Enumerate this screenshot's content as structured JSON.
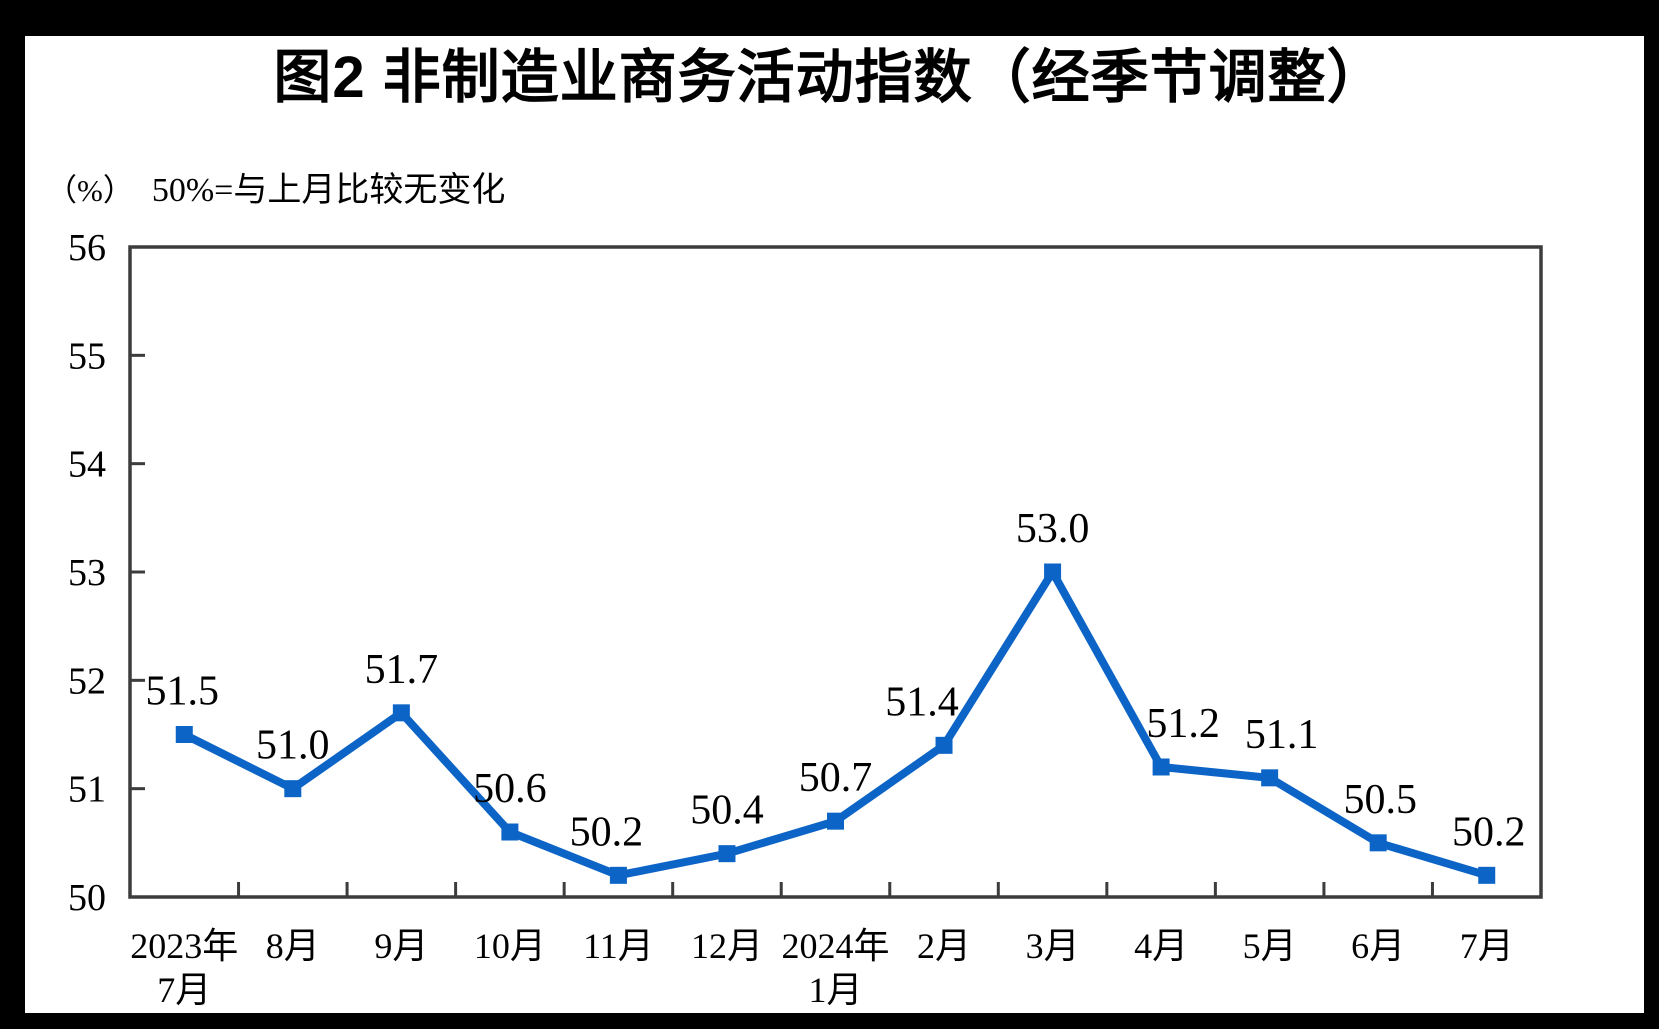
{
  "title": "图2 非制造业商务活动指数（经季节调整）",
  "subtitle": {
    "unit": "（%）",
    "note": "50%=与上月比较无变化"
  },
  "chart_data": {
    "type": "line",
    "title": "图2 非制造业商务活动指数（经季节调整）",
    "categories": [
      "2023年\n7月",
      "8月",
      "9月",
      "10月",
      "11月",
      "12月",
      "2024年\n1月",
      "2月",
      "3月",
      "4月",
      "5月",
      "6月",
      "7月"
    ],
    "values": [
      51.5,
      51.0,
      51.7,
      50.6,
      50.2,
      50.4,
      50.7,
      51.4,
      53.0,
      51.2,
      51.1,
      50.5,
      50.2
    ],
    "data_labels": [
      "51.5",
      "51.0",
      "51.7",
      "50.6",
      "50.2",
      "50.4",
      "50.7",
      "51.4",
      "53.0",
      "51.2",
      "51.1",
      "50.5",
      "50.2"
    ],
    "ylim": [
      50,
      56
    ],
    "yticks": [
      50,
      51,
      52,
      53,
      54,
      55,
      56
    ],
    "xlabel": "",
    "ylabel": "（%）",
    "grid": false,
    "legend": "none",
    "line_color": "#0c64c6",
    "marker": "square",
    "marker_color": "#0c64c6",
    "axis_color": "#3c3c3c",
    "label_color": "#000000",
    "background": "#ffffff",
    "frame_color": "#000000"
  }
}
